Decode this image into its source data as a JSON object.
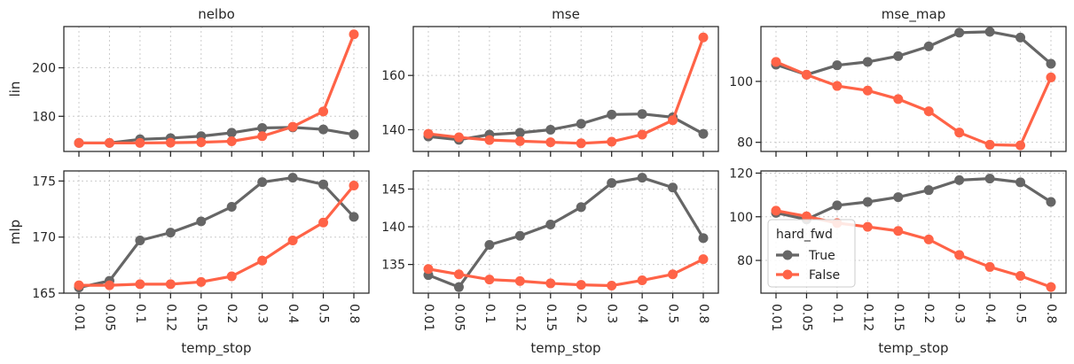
{
  "chart_data": {
    "type": "line",
    "x_label": "temp_stop",
    "categories": [
      "0.01",
      "0.05",
      "0.1",
      "0.12",
      "0.15",
      "0.2",
      "0.3",
      "0.4",
      "0.5",
      "0.8"
    ],
    "row_labels": [
      "lin",
      "mlp"
    ],
    "col_labels": [
      "nelbo",
      "mse",
      "mse_map"
    ],
    "legend": {
      "title": "hard_fwd",
      "entries": [
        "True",
        "False"
      ],
      "placement": "lower-left of bottom-right panel"
    },
    "series_colors": [
      "#666666",
      "#ff6347"
    ],
    "grid": true,
    "panels": [
      {
        "row": 0,
        "col": 0,
        "title": "nelbo",
        "ylabel": "lin",
        "ylim": [
          165.5,
          217
        ],
        "yticks": [
          180,
          200
        ],
        "series": [
          {
            "name": "True",
            "values": [
              169,
              169,
              170.5,
              171,
              171.8,
              173.2,
              175.2,
              175.4,
              174.6,
              172.5
            ]
          },
          {
            "name": "False",
            "values": [
              169,
              169,
              169,
              169.1,
              169.3,
              169.7,
              171.8,
              175.7,
              182,
              213.8
            ]
          }
        ]
      },
      {
        "row": 0,
        "col": 1,
        "title": "mse",
        "ylabel": "",
        "ylim": [
          132,
          178
        ],
        "yticks": [
          140,
          160
        ],
        "series": [
          {
            "name": "True",
            "values": [
              137.5,
              136.3,
              138.2,
              138.9,
              140,
              142.2,
              145.6,
              145.8,
              144.6,
              138.5
            ]
          },
          {
            "name": "False",
            "values": [
              138.5,
              137.2,
              136.2,
              135.8,
              135.4,
              135,
              135.6,
              138.2,
              143.5,
              174
            ]
          }
        ]
      },
      {
        "row": 0,
        "col": 2,
        "title": "mse_map",
        "ylabel": "",
        "ylim": [
          77,
          118
        ],
        "yticks": [
          80,
          100
        ],
        "series": [
          {
            "name": "True",
            "values": [
              105.5,
              102.2,
              105.3,
              106.4,
              108.3,
              111.5,
              116,
              116.3,
              114.4,
              105.8
            ]
          },
          {
            "name": "False",
            "values": [
              106.4,
              102.2,
              98.5,
              97,
              94.2,
              90.2,
              83.2,
              79.2,
              79,
              101.3
            ]
          }
        ]
      },
      {
        "row": 1,
        "col": 0,
        "title": "",
        "ylabel": "mlp",
        "ylim": [
          165,
          175.9
        ],
        "yticks": [
          165,
          170,
          175
        ],
        "series": [
          {
            "name": "True",
            "values": [
              165.5,
              166.1,
              169.7,
              170.4,
              171.4,
              172.7,
              174.9,
              175.3,
              174.7,
              171.8
            ]
          },
          {
            "name": "False",
            "values": [
              165.7,
              165.7,
              165.8,
              165.8,
              166,
              166.5,
              167.9,
              169.7,
              171.3,
              174.6
            ]
          }
        ]
      },
      {
        "row": 1,
        "col": 1,
        "title": "",
        "ylabel": "",
        "ylim": [
          131.2,
          147.4
        ],
        "yticks": [
          135,
          140,
          145
        ],
        "series": [
          {
            "name": "True",
            "values": [
              133.6,
              132,
              137.6,
              138.8,
              140.3,
              142.6,
              145.8,
              146.5,
              145.2,
              138.5
            ]
          },
          {
            "name": "False",
            "values": [
              134.4,
              133.7,
              133,
              132.8,
              132.5,
              132.3,
              132.2,
              132.9,
              133.7,
              135.7
            ]
          }
        ]
      },
      {
        "row": 1,
        "col": 2,
        "title": "",
        "ylabel": "",
        "ylim": [
          65,
          121
        ],
        "yticks": [
          80,
          100,
          120
        ],
        "series": [
          {
            "name": "True",
            "values": [
              101.8,
              98.8,
              105.2,
              106.8,
              109,
              112.2,
              116.8,
              117.5,
              115.8,
              106.8
            ]
          },
          {
            "name": "False",
            "values": [
              102.8,
              100.2,
              97.1,
              95.4,
              93.5,
              89.6,
              82.5,
              77,
              72.9,
              67.8
            ]
          }
        ]
      }
    ]
  }
}
